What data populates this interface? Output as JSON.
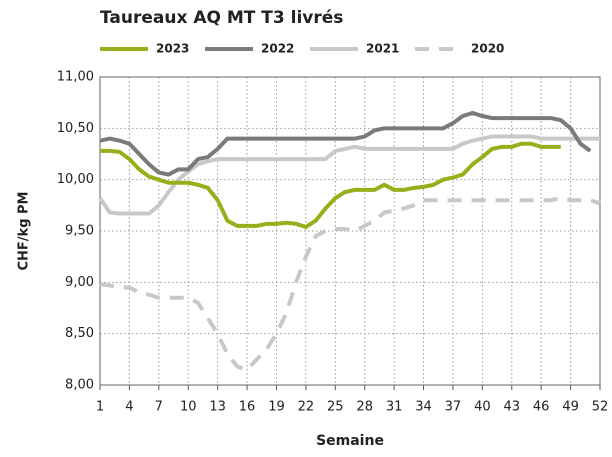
{
  "chart_data": {
    "type": "line",
    "title": "Taureaux AQ MT T3 livrés",
    "xlabel": "Semaine",
    "ylabel": "CHF/kg PM",
    "x": [
      1,
      2,
      3,
      4,
      5,
      6,
      7,
      8,
      9,
      10,
      11,
      12,
      13,
      14,
      15,
      16,
      17,
      18,
      19,
      20,
      21,
      22,
      23,
      24,
      25,
      26,
      27,
      28,
      29,
      30,
      31,
      32,
      33,
      34,
      35,
      36,
      37,
      38,
      39,
      40,
      41,
      42,
      43,
      44,
      45,
      46,
      47,
      48,
      49,
      50,
      51,
      52
    ],
    "xlim": [
      1,
      52
    ],
    "xticks": [
      1,
      4,
      7,
      10,
      13,
      16,
      19,
      22,
      25,
      28,
      31,
      34,
      37,
      40,
      43,
      46,
      49,
      52
    ],
    "ylim": [
      8,
      11
    ],
    "yticks": [
      {
        "value": 8,
        "label": "8,00"
      },
      {
        "value": 8.5,
        "label": "8,50"
      },
      {
        "value": 9,
        "label": "9,00"
      },
      {
        "value": 9.5,
        "label": "9,50"
      },
      {
        "value": 10,
        "label": "10,00"
      },
      {
        "value": 10.5,
        "label": "10,50"
      },
      {
        "value": 11,
        "label": "11,00"
      }
    ],
    "grid": true,
    "legend": "top",
    "series": [
      {
        "name": "2023",
        "color": "#9aad1a",
        "style": "solid",
        "values": [
          10.28,
          10.28,
          10.27,
          10.2,
          10.1,
          10.03,
          10.0,
          9.97,
          9.97,
          9.97,
          9.95,
          9.92,
          9.8,
          9.6,
          9.55,
          9.55,
          9.55,
          9.57,
          9.57,
          9.58,
          9.57,
          9.54,
          9.6,
          9.72,
          9.82,
          9.88,
          9.9,
          9.9,
          9.9,
          9.95,
          9.9,
          9.9,
          9.92,
          9.93,
          9.95,
          10.0,
          10.02,
          10.05,
          10.15,
          10.22,
          10.3,
          10.32,
          10.32,
          10.35,
          10.35,
          10.32,
          10.32,
          10.32,
          null,
          null,
          null,
          null
        ]
      },
      {
        "name": "2022",
        "color": "#7a7a7a",
        "style": "solid",
        "values": [
          10.38,
          10.4,
          10.38,
          10.35,
          10.25,
          10.15,
          10.07,
          10.05,
          10.1,
          10.1,
          10.2,
          10.22,
          10.3,
          10.4,
          10.4,
          10.4,
          10.4,
          10.4,
          10.4,
          10.4,
          10.4,
          10.4,
          10.4,
          10.4,
          10.4,
          10.4,
          10.4,
          10.42,
          10.48,
          10.5,
          10.5,
          10.5,
          10.5,
          10.5,
          10.5,
          10.5,
          10.55,
          10.62,
          10.65,
          10.62,
          10.6,
          10.6,
          10.6,
          10.6,
          10.6,
          10.6,
          10.6,
          10.58,
          10.5,
          10.35,
          10.28,
          null
        ]
      },
      {
        "name": "2021",
        "color": "#c8c8c8",
        "style": "solid",
        "values": [
          9.82,
          9.68,
          9.67,
          9.67,
          9.67,
          9.67,
          9.75,
          9.88,
          10.0,
          10.08,
          10.15,
          10.18,
          10.2,
          10.2,
          10.2,
          10.2,
          10.2,
          10.2,
          10.2,
          10.2,
          10.2,
          10.2,
          10.2,
          10.2,
          10.28,
          10.3,
          10.32,
          10.3,
          10.3,
          10.3,
          10.3,
          10.3,
          10.3,
          10.3,
          10.3,
          10.3,
          10.3,
          10.35,
          10.38,
          10.4,
          10.42,
          10.42,
          10.42,
          10.42,
          10.42,
          10.4,
          10.4,
          10.4,
          10.4,
          10.4,
          10.4,
          10.4
        ]
      },
      {
        "name": "2020",
        "color": "#c8c8c8",
        "style": "dashed",
        "values": [
          8.98,
          8.97,
          8.95,
          8.95,
          8.9,
          8.88,
          8.85,
          8.85,
          8.85,
          8.85,
          8.8,
          8.65,
          8.5,
          8.3,
          8.18,
          8.15,
          8.25,
          8.35,
          8.5,
          8.7,
          9.0,
          9.25,
          9.45,
          9.5,
          9.52,
          9.52,
          9.5,
          9.55,
          9.6,
          9.68,
          9.7,
          9.72,
          9.75,
          9.8,
          9.8,
          9.8,
          9.8,
          9.8,
          9.8,
          9.8,
          9.8,
          9.8,
          9.8,
          9.8,
          9.8,
          9.8,
          9.8,
          9.82,
          9.8,
          9.8,
          9.8,
          9.77
        ]
      }
    ]
  }
}
